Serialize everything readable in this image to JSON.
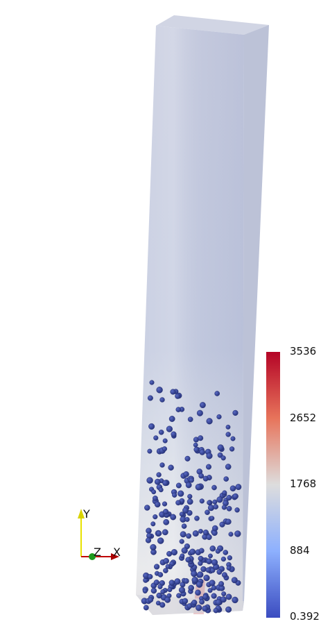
{
  "scalar_bar": {
    "labels": [
      "3536",
      "2652",
      "1768",
      "884",
      "0.392"
    ],
    "colors": {
      "high": "#b40426",
      "mid": "#dddddd",
      "low": "#3b4cc0"
    }
  },
  "axes": {
    "x": "X",
    "y": "Y",
    "z": "Z"
  },
  "scene": {
    "column_color": "#b9bfd6",
    "particle_color": "#34449a",
    "particle_count": 300
  }
}
